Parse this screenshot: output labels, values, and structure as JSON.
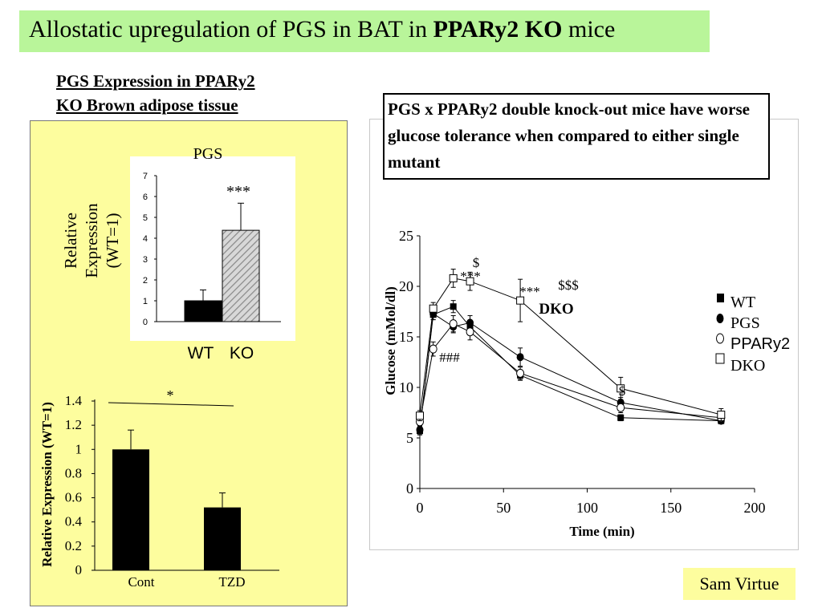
{
  "slide": {
    "title_prefix": "Allostatic upregulation of PGS in BAT in ",
    "title_bold": "PPARy2 KO",
    "title_suffix": " mice",
    "subtitle_line1": "PGS Expression in PPARy2",
    "subtitle_line2": "KO Brown adipose tissue",
    "callout_bold": "PGS x PPARy2 double knock-out mice have",
    "callout_rest": " worse glucose tolerance when compared to either single mutant",
    "author": "Sam Virtue"
  },
  "colors": {
    "title_bg": "#b9f59a",
    "panel_bg": "#fdfd9e"
  },
  "chart_data": [
    {
      "type": "bar",
      "title": "PGS",
      "ylabel": "Relative Expression (WT=1)",
      "categories": [
        "WT",
        "KO"
      ],
      "values": [
        1.0,
        4.38
      ],
      "errors": [
        0.52,
        1.3
      ],
      "ylim": [
        0,
        7
      ],
      "yticks": [
        "0",
        "1",
        "2",
        "3",
        "4",
        "5",
        "6",
        "7"
      ],
      "annotation": "***"
    },
    {
      "type": "bar",
      "ylabel": "Relative Expression (WT=1)",
      "categories": [
        "Cont",
        "TZD"
      ],
      "values": [
        1.0,
        0.52
      ],
      "errors": [
        0.16,
        0.12
      ],
      "ylim": [
        0,
        1.4
      ],
      "yticks": [
        "0",
        "0.2",
        "0.4",
        "0.6",
        "0.8",
        "1",
        "1.2",
        "1.4"
      ],
      "annotation": "*"
    },
    {
      "type": "line",
      "xlabel": "Time (min)",
      "ylabel": "Glucose (mMol/dl)",
      "xlim": [
        0,
        200
      ],
      "ylim": [
        0,
        25
      ],
      "xticks": [
        "0",
        "50",
        "100",
        "150",
        "200"
      ],
      "yticks": [
        "0",
        "5",
        "10",
        "15",
        "20",
        "25"
      ],
      "x": [
        0,
        8,
        20,
        30,
        60,
        120,
        180
      ],
      "series": [
        {
          "name": "WT",
          "marker": "filled-square",
          "values": [
            5.7,
            17.2,
            18.0,
            16.0,
            11.2,
            7.0,
            6.7
          ],
          "errors": [
            0.4,
            0.5,
            0.6,
            0.6,
            0.5,
            0.3,
            0.3
          ]
        },
        {
          "name": "PGS",
          "marker": "filled-circle",
          "values": [
            5.8,
            17.3,
            16.0,
            16.4,
            13.0,
            8.5,
            6.7
          ],
          "errors": [
            0.4,
            0.6,
            0.6,
            0.7,
            0.9,
            0.5,
            0.3
          ]
        },
        {
          "name": "PPARy2",
          "marker": "open-circle",
          "values": [
            6.6,
            13.8,
            16.3,
            15.5,
            11.4,
            8.0,
            7.0
          ],
          "errors": [
            0.4,
            0.7,
            0.8,
            0.8,
            0.6,
            0.5,
            0.4
          ]
        },
        {
          "name": "DKO",
          "marker": "open-square",
          "values": [
            7.2,
            17.8,
            20.8,
            20.5,
            18.6,
            9.9,
            7.3
          ],
          "errors": [
            0.5,
            0.6,
            0.9,
            0.9,
            2.1,
            1.1,
            0.6
          ]
        }
      ],
      "annotations": [
        "$",
        "***",
        "***",
        "$$$",
        "DKO",
        "###",
        "$"
      ]
    }
  ]
}
